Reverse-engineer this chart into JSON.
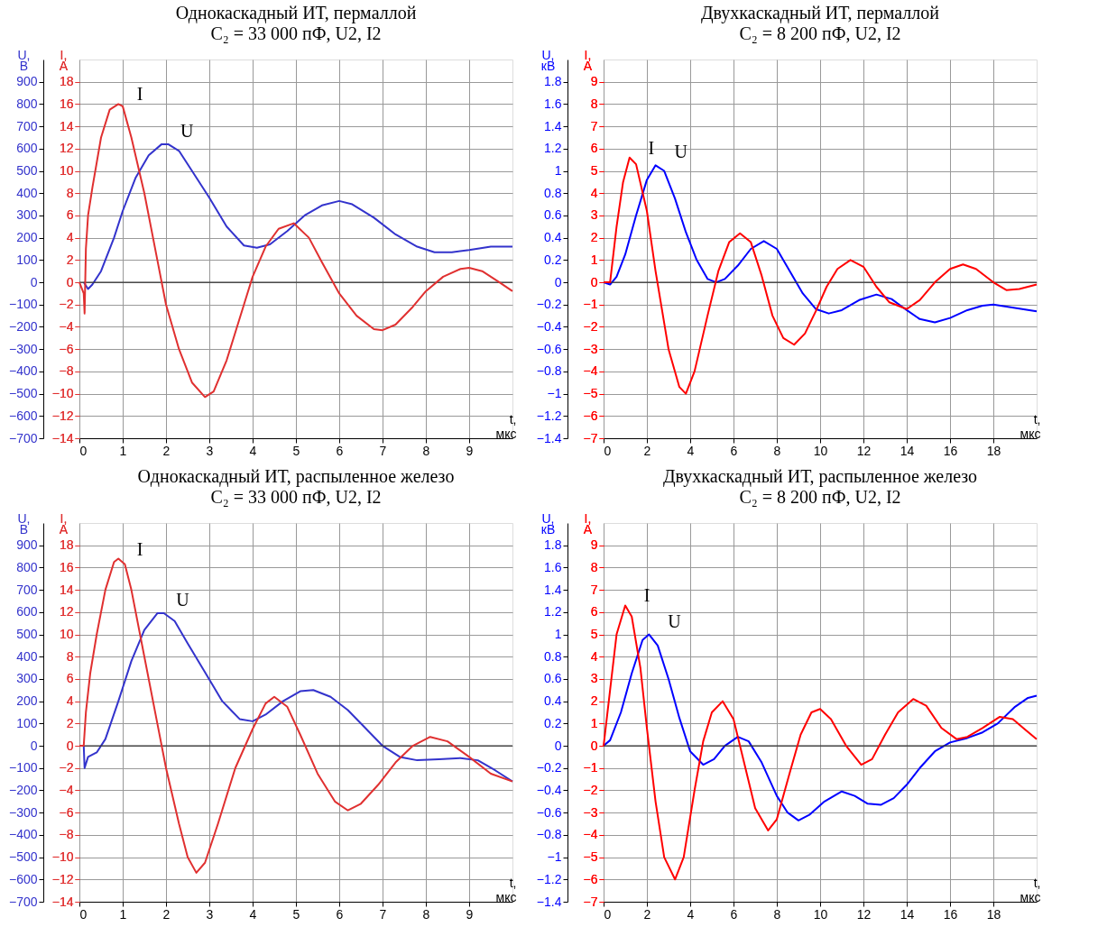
{
  "chart_data": [
    {
      "type": "line",
      "title": "Однокаскадный ИТ, пермаллой",
      "subtitle": "C₂ = 33 000 пФ, U2, I2",
      "xlabel": "t, мкс",
      "ylabel": "U, В",
      "y2label": "I, A",
      "xlim": [
        0,
        10
      ],
      "xticks": [
        0,
        1,
        2,
        3,
        4,
        5,
        6,
        7,
        8,
        9
      ],
      "ylim": [
        -700,
        1000
      ],
      "yticks": [
        -700,
        -600,
        -500,
        -400,
        -300,
        -200,
        -100,
        0,
        100,
        200,
        300,
        400,
        500,
        600,
        700,
        800,
        900
      ],
      "y2lim": [
        -14,
        20
      ],
      "y2ticks": [
        -14,
        -12,
        -10,
        -8,
        -6,
        -4,
        -2,
        0,
        2,
        4,
        6,
        8,
        10,
        12,
        14,
        16,
        18
      ],
      "grid": true,
      "ref_lines": [
        {
          "axis": "y",
          "value": 0,
          "color": "#333333"
        }
      ],
      "annotations": [
        "U",
        "I"
      ],
      "series": [
        {
          "color": "#3333cc",
          "x": [
            0.1,
            0.2,
            0.3,
            0.5,
            0.8,
            1.0,
            1.3,
            1.6,
            1.9,
            2.05,
            2.3,
            2.6,
            3.0,
            3.4,
            3.8,
            4.1,
            4.4,
            4.8,
            5.2,
            5.6,
            6.0,
            6.3,
            6.8,
            7.3,
            7.8,
            8.2,
            8.6,
            9.0,
            9.5,
            10
          ],
          "values": [
            0,
            -30,
            -10,
            50,
            200,
            320,
            470,
            570,
            620,
            620,
            590,
            500,
            380,
            250,
            165,
            155,
            170,
            230,
            300,
            345,
            365,
            350,
            290,
            215,
            160,
            135,
            135,
            145,
            160,
            160
          ]
        },
        {
          "color": "#e03030",
          "axis": "y2",
          "x": [
            0,
            0.1,
            0.12,
            0.15,
            0.2,
            0.3,
            0.5,
            0.7,
            0.9,
            1.0,
            1.2,
            1.5,
            1.8,
            2.0,
            2.3,
            2.6,
            2.9,
            3.1,
            3.4,
            3.8,
            4.0,
            4.3,
            4.6,
            4.95,
            5.3,
            5.6,
            6.0,
            6.4,
            6.8,
            7.0,
            7.3,
            7.7,
            8.0,
            8.4,
            8.8,
            9.0,
            9.3,
            9.7,
            10
          ],
          "values": [
            0,
            -1,
            -2.8,
            3,
            6,
            8.5,
            13,
            15.5,
            16,
            15.8,
            13,
            8,
            2,
            -2,
            -6,
            -9,
            -10.3,
            -9.8,
            -7,
            -2,
            0.5,
            3.2,
            4.8,
            5.3,
            4,
            1.8,
            -1,
            -3,
            -4.2,
            -4.3,
            -3.8,
            -2.2,
            -0.8,
            0.5,
            1.2,
            1.3,
            1,
            0,
            -0.8
          ]
        }
      ]
    },
    {
      "type": "line",
      "title": "Двухкаскадный ИТ, пермаллой",
      "subtitle": "C₂ = 8 200 пФ, U2, I2",
      "xlabel": "t, мкс",
      "ylabel": "U, кВ",
      "y2label": "I, A",
      "xlim": [
        0,
        20
      ],
      "xticks": [
        0,
        2,
        4,
        6,
        8,
        10,
        12,
        14,
        16,
        18
      ],
      "ylim": [
        -1.4,
        2.0
      ],
      "yticks": [
        -1.4,
        -1.2,
        -1,
        -0.8,
        -0.6,
        -0.4,
        -0.2,
        0,
        0.2,
        0.4,
        0.6,
        0.8,
        1,
        1.2,
        1.4,
        1.6,
        1.8
      ],
      "y2lim": [
        -7,
        10
      ],
      "y2ticks": [
        -7,
        -6,
        -5,
        -4,
        -3,
        -2,
        -1,
        0,
        1,
        2,
        3,
        4,
        5,
        6,
        7,
        8,
        9
      ],
      "grid": true,
      "ref_lines": [
        {
          "axis": "y",
          "value": 0,
          "color": "#333333"
        }
      ],
      "annotations": [
        "U",
        "I"
      ],
      "series": [
        {
          "color": "#0000ff",
          "x": [
            0,
            0.3,
            0.6,
            1.0,
            1.5,
            2.0,
            2.4,
            2.8,
            3.3,
            3.8,
            4.3,
            4.8,
            5.2,
            5.6,
            6.2,
            6.8,
            7.4,
            8.0,
            8.6,
            9.2,
            9.8,
            10.4,
            11.0,
            11.8,
            12.6,
            13.3,
            14.0,
            14.6,
            15.3,
            16.0,
            16.8,
            17.5,
            18.0,
            19,
            20
          ],
          "values": [
            0,
            -0.02,
            0.05,
            0.25,
            0.6,
            0.92,
            1.05,
            1.0,
            0.75,
            0.45,
            0.2,
            0.03,
            0,
            0.03,
            0.15,
            0.3,
            0.37,
            0.3,
            0.1,
            -0.1,
            -0.24,
            -0.28,
            -0.25,
            -0.16,
            -0.11,
            -0.15,
            -0.25,
            -0.33,
            -0.36,
            -0.32,
            -0.25,
            -0.21,
            -0.2,
            -0.23,
            -0.26
          ]
        },
        {
          "color": "#ff0000",
          "axis": "y2",
          "x": [
            0,
            0.3,
            0.6,
            0.9,
            1.2,
            1.5,
            2.0,
            2.4,
            3.0,
            3.5,
            3.8,
            4.2,
            4.8,
            5.3,
            5.8,
            6.3,
            6.8,
            7.3,
            7.8,
            8.3,
            8.8,
            9.3,
            9.8,
            10.3,
            10.8,
            11.4,
            12,
            12.6,
            13.2,
            14,
            14.6,
            15.3,
            16,
            16.6,
            17.2,
            18,
            18.6,
            19.2,
            20
          ],
          "values": [
            0,
            0,
            2.5,
            4.5,
            5.6,
            5.3,
            3.2,
            0.5,
            -3,
            -4.7,
            -5,
            -4,
            -1.5,
            0.5,
            1.8,
            2.2,
            1.8,
            0.3,
            -1.5,
            -2.5,
            -2.8,
            -2.3,
            -1.3,
            -0.2,
            0.6,
            1,
            0.7,
            -0.2,
            -0.9,
            -1.2,
            -0.8,
            0,
            0.6,
            0.8,
            0.6,
            0,
            -0.35,
            -0.3,
            -0.1
          ]
        }
      ]
    },
    {
      "type": "line",
      "title": "Однокаскадный ИТ, распыленное железо",
      "subtitle": "C₂ = 33 000 пФ, U2, I2",
      "xlabel": "t, мкс",
      "ylabel": "U, В",
      "y2label": "I, A",
      "xlim": [
        0,
        10
      ],
      "xticks": [
        0,
        1,
        2,
        3,
        4,
        5,
        6,
        7,
        8,
        9
      ],
      "ylim": [
        -700,
        1000
      ],
      "yticks": [
        -700,
        -600,
        -500,
        -400,
        -300,
        -200,
        -100,
        0,
        100,
        200,
        300,
        400,
        500,
        600,
        700,
        800,
        900
      ],
      "y2lim": [
        -14,
        20
      ],
      "y2ticks": [
        -14,
        -12,
        -10,
        -8,
        -6,
        -4,
        -2,
        0,
        2,
        4,
        6,
        8,
        10,
        12,
        14,
        16,
        18
      ],
      "grid": true,
      "ref_lines": [
        {
          "axis": "y",
          "value": 0,
          "color": "#333333"
        }
      ],
      "annotations": [
        "U",
        "I"
      ],
      "series": [
        {
          "color": "#3333cc",
          "x": [
            0.1,
            0.12,
            0.2,
            0.4,
            0.6,
            0.9,
            1.2,
            1.5,
            1.8,
            1.95,
            2.2,
            2.5,
            2.9,
            3.3,
            3.7,
            4.0,
            4.3,
            4.7,
            5.1,
            5.4,
            5.8,
            6.2,
            6.6,
            7.0,
            7.4,
            7.8,
            8.3,
            8.8,
            9.2,
            9.6,
            10
          ],
          "values": [
            0,
            -100,
            -50,
            -30,
            30,
            200,
            380,
            520,
            595,
            595,
            560,
            460,
            330,
            200,
            120,
            110,
            140,
            200,
            245,
            250,
            220,
            160,
            80,
            0,
            -50,
            -65,
            -60,
            -55,
            -65,
            -110,
            -160
          ]
        },
        {
          "color": "#e03030",
          "axis": "y2",
          "x": [
            0,
            0.1,
            0.15,
            0.25,
            0.4,
            0.6,
            0.8,
            0.9,
            1.05,
            1.2,
            1.5,
            1.8,
            2.0,
            2.3,
            2.5,
            2.7,
            2.9,
            3.2,
            3.6,
            4.0,
            4.3,
            4.5,
            4.8,
            5.1,
            5.5,
            5.9,
            6.2,
            6.5,
            6.9,
            7.3,
            7.7,
            8.1,
            8.5,
            9.0,
            9.5,
            10
          ],
          "values": [
            0,
            0,
            3,
            6.5,
            10,
            14,
            16.5,
            16.8,
            16.3,
            14,
            8,
            2,
            -2,
            -7,
            -10,
            -11.4,
            -10.5,
            -7,
            -2,
            1.5,
            3.8,
            4.4,
            3.5,
            1,
            -2.5,
            -5,
            -5.8,
            -5.2,
            -3.5,
            -1.5,
            0,
            0.8,
            0.4,
            -1,
            -2.5,
            -3.2
          ]
        }
      ]
    },
    {
      "type": "line",
      "title": "Двухкаскадный ИТ, распыленное железо",
      "subtitle": "C₂ = 8 200 пФ, U2, I2",
      "xlabel": "t, мкс",
      "ylabel": "U, кВ",
      "y2label": "I, A",
      "xlim": [
        0,
        20
      ],
      "xticks": [
        0,
        2,
        4,
        6,
        8,
        10,
        12,
        14,
        16,
        18
      ],
      "ylim": [
        -1.4,
        2.0
      ],
      "yticks": [
        -1.4,
        -1.2,
        -1,
        -0.8,
        -0.6,
        -0.4,
        -0.2,
        0,
        0.2,
        0.4,
        0.6,
        0.8,
        1,
        1.2,
        1.4,
        1.6,
        1.8
      ],
      "y2lim": [
        -7,
        10
      ],
      "y2ticks": [
        -7,
        -6,
        -5,
        -4,
        -3,
        -2,
        -1,
        0,
        1,
        2,
        3,
        4,
        5,
        6,
        7,
        8,
        9
      ],
      "grid": true,
      "ref_lines": [
        {
          "axis": "y",
          "value": 0,
          "color": "#333333"
        }
      ],
      "annotations": [
        "U",
        "I"
      ],
      "series": [
        {
          "color": "#0000ff",
          "x": [
            0,
            0.3,
            0.8,
            1.3,
            1.8,
            2.1,
            2.5,
            3.0,
            3.5,
            4.0,
            4.6,
            5.1,
            5.6,
            6.2,
            6.7,
            7.3,
            8.0,
            8.5,
            9.0,
            9.5,
            10.2,
            11.0,
            11.6,
            12.2,
            12.8,
            13.4,
            14.0,
            14.6,
            15.3,
            16.0,
            16.8,
            17.5,
            18.2,
            19,
            19.6,
            20
          ],
          "values": [
            0,
            0.05,
            0.3,
            0.65,
            0.95,
            1.0,
            0.9,
            0.6,
            0.25,
            -0.05,
            -0.17,
            -0.12,
            0,
            0.08,
            0.04,
            -0.15,
            -0.45,
            -0.6,
            -0.67,
            -0.62,
            -0.5,
            -0.41,
            -0.45,
            -0.52,
            -0.53,
            -0.47,
            -0.35,
            -0.2,
            -0.05,
            0.03,
            0.07,
            0.12,
            0.2,
            0.35,
            0.43,
            0.45
          ]
        },
        {
          "color": "#ff0000",
          "axis": "y2",
          "x": [
            0,
            0.3,
            0.6,
            1.0,
            1.3,
            1.7,
            2.0,
            2.4,
            2.8,
            3.3,
            3.7,
            4.2,
            4.6,
            5.0,
            5.5,
            6.0,
            6.5,
            7.0,
            7.6,
            8.0,
            8.6,
            9.1,
            9.6,
            10,
            10.5,
            11.2,
            11.9,
            12.4,
            13.0,
            13.6,
            14.3,
            14.9,
            15.6,
            16.3,
            16.8,
            17.5,
            18.3,
            18.9,
            19.5,
            20
          ],
          "values": [
            0,
            2.5,
            5,
            6.3,
            5.8,
            3.5,
            0.8,
            -2.5,
            -5,
            -6,
            -5,
            -2,
            0.2,
            1.5,
            2,
            1.2,
            -0.8,
            -2.8,
            -3.8,
            -3.3,
            -1.2,
            0.5,
            1.5,
            1.65,
            1.2,
            0,
            -0.85,
            -0.6,
            0.5,
            1.5,
            2.1,
            1.8,
            0.8,
            0.3,
            0.4,
            0.8,
            1.3,
            1.2,
            0.7,
            0.3
          ]
        }
      ]
    }
  ]
}
